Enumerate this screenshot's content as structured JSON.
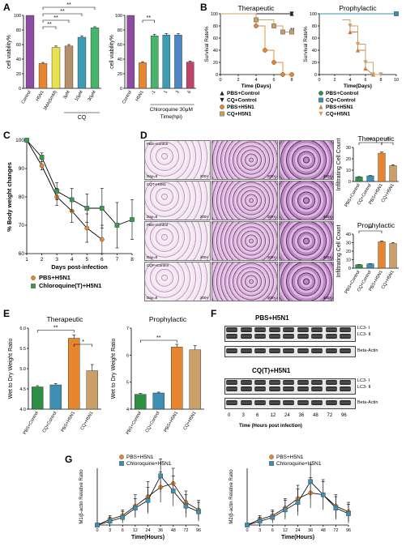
{
  "panels": {
    "A": {
      "label": "A",
      "left": {
        "ylabel": "cell viability%",
        "yticks": [
          "0",
          "20",
          "40",
          "60",
          "80",
          "100"
        ],
        "categories": [
          "Control",
          "H5N1",
          "3MA(5mM)",
          "3μM",
          "10μM",
          "30μM"
        ],
        "values": [
          100,
          34,
          56,
          58,
          70,
          83
        ],
        "errors": [
          0,
          1.5,
          2,
          2,
          2,
          1.5
        ],
        "colors": [
          "#8e4ba2",
          "#e6872f",
          "#e8e34a",
          "#b6906b",
          "#3d9bb4",
          "#46b46b"
        ],
        "group_label": "CQ",
        "sig": [
          "**",
          "**",
          "**",
          "**"
        ]
      },
      "right": {
        "ylabel": "cell viability%",
        "yticks": [
          "0",
          "20",
          "40",
          "60",
          "80",
          "100"
        ],
        "categories": [
          "Control",
          "H5N1",
          "-1",
          "1",
          "3",
          "6"
        ],
        "values": [
          100,
          35,
          72,
          73,
          73,
          36
        ],
        "errors": [
          0,
          1.5,
          2,
          2,
          2,
          1.5
        ],
        "colors": [
          "#8e4ba2",
          "#e6872f",
          "#46b46b",
          "#3d9bb4",
          "#4f86c6",
          "#c0436b"
        ],
        "xlabel": "Chloroquine 30μM",
        "xlabel2": "Time(hpi)",
        "sig": [
          "**"
        ]
      }
    },
    "B": {
      "label": "B",
      "left": {
        "title": "Therapeutic",
        "ylabel": "Survival Rate%",
        "xlabel": "Time (Days)",
        "yticks": [
          "0",
          "20",
          "40",
          "60",
          "80",
          "100"
        ],
        "xticks": [
          "0",
          "2",
          "4",
          "6",
          "8"
        ],
        "series": [
          {
            "name": "PBS+Control",
            "x": [
              0,
              8
            ],
            "y": [
              100,
              100
            ],
            "color": "#222",
            "marker": "triangle-up"
          },
          {
            "name": "CQ+Control",
            "x": [
              0,
              8
            ],
            "y": [
              100,
              100
            ],
            "color": "#222",
            "marker": "triangle-down"
          },
          {
            "name": "PBS+H5N1",
            "x": [
              4,
              4,
              5,
              5,
              6,
              6,
              7,
              7,
              8
            ],
            "y": [
              100,
              80,
              80,
              40,
              40,
              20,
              20,
              0,
              0
            ],
            "color": "#e6872f",
            "marker": "circle"
          },
          {
            "name": "CQ+H5N1",
            "x": [
              0,
              4,
              4,
              6,
              6,
              7,
              7,
              8
            ],
            "y": [
              100,
              100,
              90,
              90,
              80,
              80,
              70,
              70
            ],
            "color": "#caa068",
            "marker": "square"
          }
        ],
        "annotation": "**"
      },
      "right": {
        "title": "Prophylactic",
        "ylabel": "Survival Rate%",
        "xlabel": "Time(Days)",
        "yticks": [
          "0",
          "20",
          "40",
          "60",
          "80",
          "100"
        ],
        "xticks": [
          "0",
          "2",
          "4",
          "6",
          "8",
          "10"
        ],
        "series": [
          {
            "name": "PBS+Control",
            "x": [
              0,
              10
            ],
            "y": [
              100,
              100
            ],
            "color": "#2f8f46",
            "marker": "circle"
          },
          {
            "name": "CQ+Control",
            "x": [
              0,
              10
            ],
            "y": [
              100,
              100
            ],
            "color": "#3d8fb4",
            "marker": "square"
          },
          {
            "name": "PBS+H5N1",
            "x": [
              3,
              4,
              4,
              5,
              5,
              6,
              6,
              7
            ],
            "y": [
              90,
              90,
              70,
              70,
              40,
              40,
              10,
              0
            ],
            "color": "#d07b3a",
            "marker": "triangle-up"
          },
          {
            "name": "CQ+H5N1",
            "x": [
              3,
              4,
              4,
              5,
              5,
              6,
              6,
              7,
              7,
              8
            ],
            "y": [
              90,
              90,
              80,
              80,
              50,
              50,
              20,
              20,
              0,
              0
            ],
            "color": "#caa068",
            "marker": "triangle-down"
          }
        ]
      }
    },
    "C": {
      "label": "C",
      "ylabel": "% Body weight changes",
      "xlabel": "Days post-infection",
      "yticks": [
        "60",
        "70",
        "80",
        "90",
        "100"
      ],
      "xticks": [
        "1",
        "2",
        "3",
        "4",
        "5",
        "6",
        "7",
        "8"
      ],
      "series": [
        {
          "name": "PBS+H5N1",
          "x": [
            1,
            2,
            3,
            4,
            5,
            6
          ],
          "y": [
            100,
            91,
            80,
            75,
            69,
            65
          ],
          "err": [
            0,
            1.5,
            3,
            4,
            5,
            5
          ],
          "color": "#e6872f"
        },
        {
          "name": "Chloroquine(T)+H5N1",
          "x": [
            1,
            2,
            3,
            4,
            5,
            6,
            7,
            8
          ],
          "y": [
            100,
            94,
            82,
            79,
            76,
            76,
            70,
            72
          ],
          "err": [
            0,
            1.5,
            3,
            4,
            5,
            7,
            8,
            7
          ],
          "color": "#3a9a4a"
        }
      ]
    },
    "D": {
      "label": "D",
      "images": [
        {
          "tag": "PBS+Control",
          "day": "Day=8",
          "mag1": "200×",
          "mag2": "200×",
          "mag3": "400×"
        },
        {
          "tag": "CQT+H5N1",
          "day": "Day=8",
          "mag1": "200×",
          "mag2": "200×",
          "mag3": "400×"
        },
        {
          "tag": "PBS+Control",
          "day": "Day=8",
          "mag1": "200×",
          "mag2": "200×",
          "mag3": "400×"
        },
        {
          "tag": "CQP+Control",
          "day": "Day=8",
          "mag1": "200×",
          "mag2": "200×",
          "mag3": "400×"
        }
      ],
      "bar_top": {
        "title": "Therapeutic",
        "ylabel": "Infiltrating Cell Count",
        "categories": [
          "PBS+Control",
          "CQ+Control",
          "PBS+H5N1",
          "CQ+H5N1"
        ],
        "values": [
          4,
          5,
          25,
          14
        ],
        "errors": [
          0.3,
          0.3,
          1,
          0.8
        ],
        "colors": [
          "#2f8f46",
          "#3d8fb4",
          "#e6872f",
          "#caa068"
        ],
        "yticks": [
          "0",
          "10",
          "20",
          "30"
        ],
        "sig": [
          "**",
          "**"
        ]
      },
      "bar_bottom": {
        "title": "Prophylactic",
        "ylabel": "Infiltrating Cell Count",
        "categories": [
          "PBS+Control",
          "CQ+Control",
          "PBS+H5N1",
          "CQ+H5N1"
        ],
        "values": [
          4,
          5,
          31,
          29
        ],
        "errors": [
          0.3,
          0.3,
          1,
          1
        ],
        "colors": [
          "#2f8f46",
          "#3d8fb4",
          "#e6872f",
          "#caa068"
        ],
        "yticks": [
          "0",
          "10",
          "20",
          "30",
          "40"
        ],
        "sig": [
          "**"
        ]
      }
    },
    "E": {
      "label": "E",
      "left": {
        "title": "Therapeutic",
        "ylabel": "Wet to Dry Weight Ratio",
        "categories": [
          "PBS+Control",
          "CQ+Control",
          "PBS+H5N1",
          "CQ+H5N1"
        ],
        "values": [
          4.55,
          4.6,
          5.75,
          4.95
        ],
        "errors": [
          0.03,
          0.03,
          0.08,
          0.15
        ],
        "colors": [
          "#2f8f46",
          "#3d8fb4",
          "#e6872f",
          "#caa068"
        ],
        "yticks": [
          "4.0",
          "4.5",
          "5.0",
          "5.5",
          "6.0"
        ],
        "ylim": [
          4.0,
          6.0
        ],
        "sig": [
          "**",
          "*"
        ]
      },
      "right": {
        "title": "Prophylactic",
        "ylabel": "Wet to Dry Weight Ratio",
        "categories": [
          "PBS+Control",
          "CQ+Control",
          "PBS+H5N1",
          "CQ+H5N1"
        ],
        "values": [
          4.55,
          4.6,
          6.3,
          6.2
        ],
        "errors": [
          0.03,
          0.03,
          0.1,
          0.15
        ],
        "colors": [
          "#2f8f46",
          "#3d8fb4",
          "#e6872f",
          "#caa068"
        ],
        "yticks": [
          "4",
          "5",
          "6",
          "7"
        ],
        "ylim": [
          4,
          7
        ],
        "sig": [
          "**"
        ]
      }
    },
    "F": {
      "label": "F",
      "top_title": "PBS+H5N1",
      "bottom_title": "CQ(T)+H5N1",
      "lc3_1": "LC3- I",
      "lc3_2": "LC3- II",
      "actin": "Beta-Actin",
      "lanes": [
        "0",
        "3",
        "6",
        "12",
        "24",
        "36",
        "48",
        "72",
        "96"
      ],
      "xlabel": "Time (Hours post infection)"
    },
    "G": {
      "label": "G",
      "left": {
        "ylabel": "M1/β-actin Relative Ratio",
        "xlabel": "Time(Hours)",
        "xticks": [
          "0",
          "3",
          "6",
          "12",
          "24",
          "36",
          "48",
          "72",
          "96"
        ],
        "series": [
          {
            "name": "PBS+H5N1",
            "y": [
              0,
              0.3,
              0.5,
              1.0,
              1.5,
              2.0,
              2.2,
              1.2,
              0.8
            ],
            "err": [
              0,
              0.2,
              0.3,
              0.6,
              0.8,
              0.8,
              0.8,
              0.6,
              0.5
            ],
            "color": "#e6872f"
          },
          {
            "name": "Chloroquine+H5N1",
            "y": [
              0,
              0.2,
              0.4,
              0.9,
              1.3,
              2.6,
              1.8,
              1.0,
              0.7
            ],
            "err": [
              0,
              0.2,
              0.3,
              0.5,
              0.7,
              0.9,
              0.8,
              0.6,
              0.5
            ],
            "color": "#3d8fb4"
          }
        ]
      },
      "right": {
        "ylabel": "M2/β-actin Relative Ratio",
        "xlabel": "Time(Hours)",
        "xticks": [
          "0",
          "3",
          "6",
          "12",
          "24",
          "36",
          "48",
          "72",
          "96"
        ],
        "series": [
          {
            "name": "PBS+H5N1",
            "y": [
              0,
              0.3,
              0.5,
              0.9,
              1.4,
              1.7,
              1.6,
              1.0,
              0.7
            ],
            "err": [
              0,
              0.2,
              0.3,
              0.5,
              0.7,
              0.8,
              0.7,
              0.6,
              0.5
            ],
            "color": "#e6872f"
          },
          {
            "name": "Chloroquine+H5N1",
            "y": [
              0,
              0.2,
              0.4,
              0.8,
              1.2,
              2.3,
              1.6,
              0.9,
              0.6
            ],
            "err": [
              0,
              0.2,
              0.3,
              0.5,
              0.7,
              0.9,
              0.8,
              0.6,
              0.5
            ],
            "color": "#3d8fb4"
          }
        ]
      }
    }
  }
}
